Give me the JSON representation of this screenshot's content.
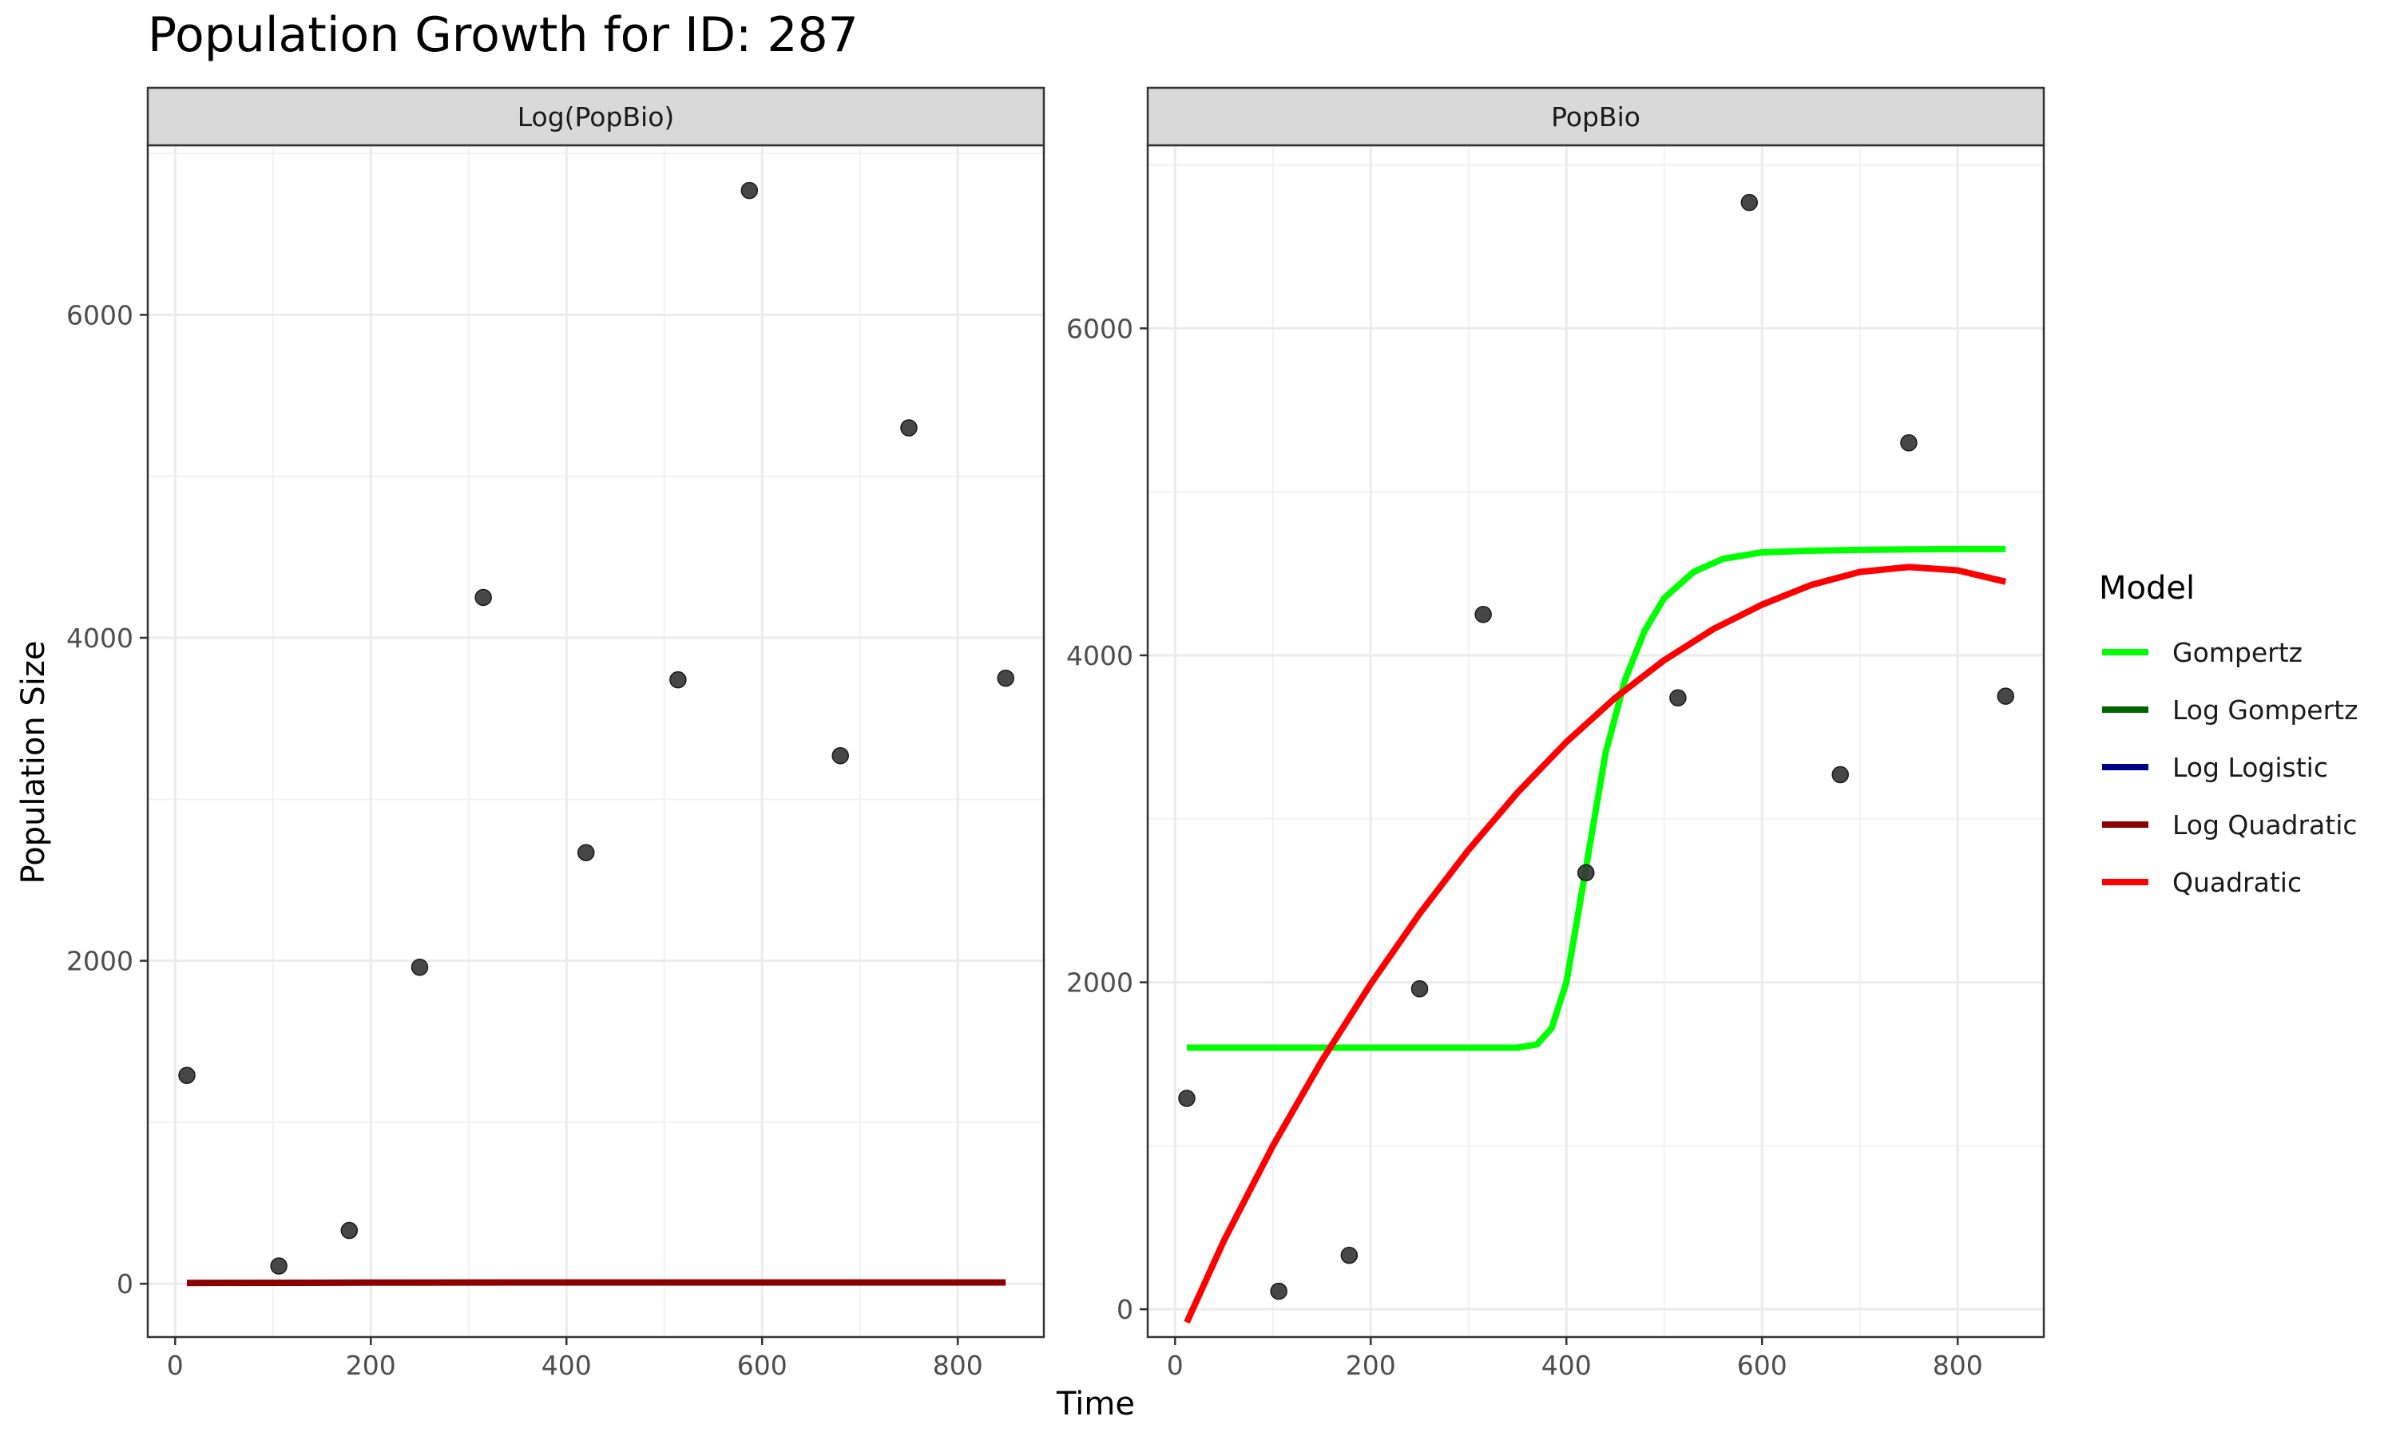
{
  "chart_data": {
    "type": "line",
    "title": "Population Growth for ID: 287",
    "xlabel": "Time",
    "ylabel": "Population Size",
    "grid": true,
    "legend": {
      "title": "Model",
      "placement": "right",
      "entries": [
        {
          "name": "Gompertz",
          "color": "#00ff00"
        },
        {
          "name": "Log Gompertz",
          "color": "#006400"
        },
        {
          "name": "Log Logistic",
          "color": "#00008b"
        },
        {
          "name": "Log Quadratic",
          "color": "#8b0000"
        },
        {
          "name": "Quadratic",
          "color": "#ff0000"
        }
      ]
    },
    "panels": [
      {
        "strip": "Log(PopBio)",
        "xlim": [
          -28,
          888
        ],
        "ylim": [
          -330,
          7050
        ],
        "xticks": [
          0,
          200,
          400,
          600,
          800
        ],
        "yticks": [
          0,
          2000,
          4000,
          6000
        ],
        "points": {
          "x": [
            12,
            106,
            178,
            250,
            315,
            420,
            514,
            587,
            680,
            750,
            849
          ],
          "y": [
            1290,
            110,
            330,
            1960,
            4250,
            2670,
            3740,
            6770,
            3270,
            5300,
            3750
          ]
        },
        "series": [
          {
            "name": "Log Quadratic",
            "color": "#8b0000",
            "x": [
              12,
              200,
              400,
              600,
              849
            ],
            "y": [
              5,
              7,
              8,
              8,
              8
            ]
          }
        ]
      },
      {
        "strip": "PopBio",
        "xlim": [
          -28,
          888
        ],
        "ylim": [
          -170,
          7120
        ],
        "xticks": [
          0,
          200,
          400,
          600,
          800
        ],
        "yticks": [
          0,
          2000,
          4000,
          6000
        ],
        "points": {
          "x": [
            12,
            106,
            178,
            250,
            315,
            420,
            514,
            587,
            680,
            750,
            849
          ],
          "y": [
            1290,
            110,
            330,
            1960,
            4250,
            2670,
            3740,
            6770,
            3270,
            5300,
            3750
          ]
        },
        "series": [
          {
            "name": "Gompertz",
            "color": "#00ff00",
            "x": [
              12,
              100,
              200,
              300,
              350,
              370,
              385,
              400,
              420,
              440,
              460,
              480,
              500,
              530,
              560,
              600,
              650,
              700,
              750,
              800,
              849
            ],
            "y": [
              1600,
              1600,
              1600,
              1600,
              1600,
              1620,
              1720,
              2000,
              2700,
              3400,
              3850,
              4150,
              4350,
              4510,
              4590,
              4630,
              4640,
              4645,
              4648,
              4650,
              4650
            ]
          },
          {
            "name": "Quadratic",
            "color": "#ff0000",
            "x": [
              12,
              50,
              100,
              150,
              200,
              250,
              300,
              350,
              400,
              450,
              500,
              550,
              600,
              650,
              700,
              750,
              800,
              849
            ],
            "y": [
              -80,
              420,
              1000,
              1520,
              1990,
              2420,
              2810,
              3160,
              3470,
              3740,
              3970,
              4160,
              4310,
              4430,
              4510,
              4540,
              4520,
              4450
            ]
          }
        ]
      }
    ]
  }
}
